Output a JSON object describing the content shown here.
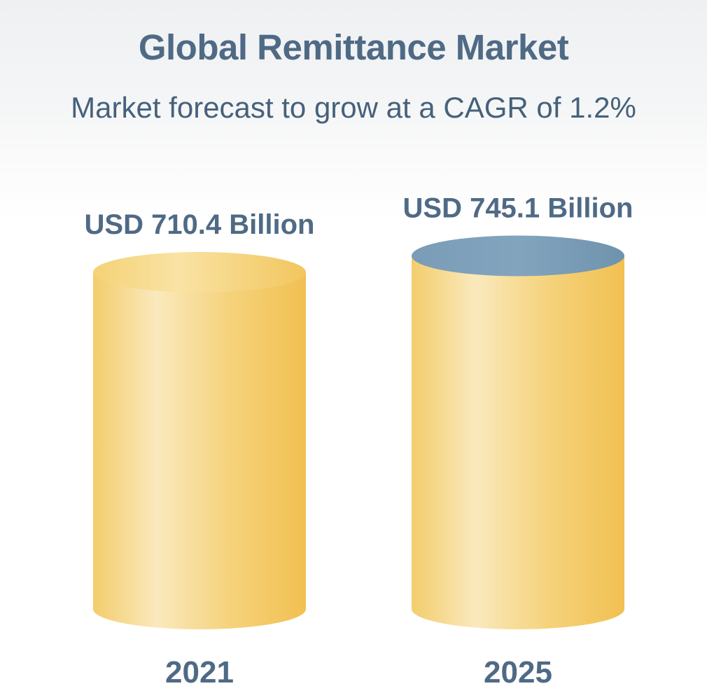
{
  "chart_data": {
    "type": "bar",
    "title": "Global Remittance Market",
    "subtitle": "Market forecast to grow at a CAGR of 1.2%",
    "categories": [
      "2021",
      "2025"
    ],
    "values": [
      710.4,
      745.1
    ],
    "value_labels": [
      "USD 710.4 Billion",
      "USD 745.1 Billion"
    ],
    "unit": "USD Billion",
    "xlabel": "",
    "ylabel": "",
    "grid": false,
    "legend": "none",
    "bar_shape": "cylinder",
    "colors": {
      "body_light": "#f8e6b2",
      "body_dark": "#f2c35e",
      "top_base": "#f6d67a",
      "top_growth": "#7b9db8",
      "text": "#4f6a85"
    }
  }
}
